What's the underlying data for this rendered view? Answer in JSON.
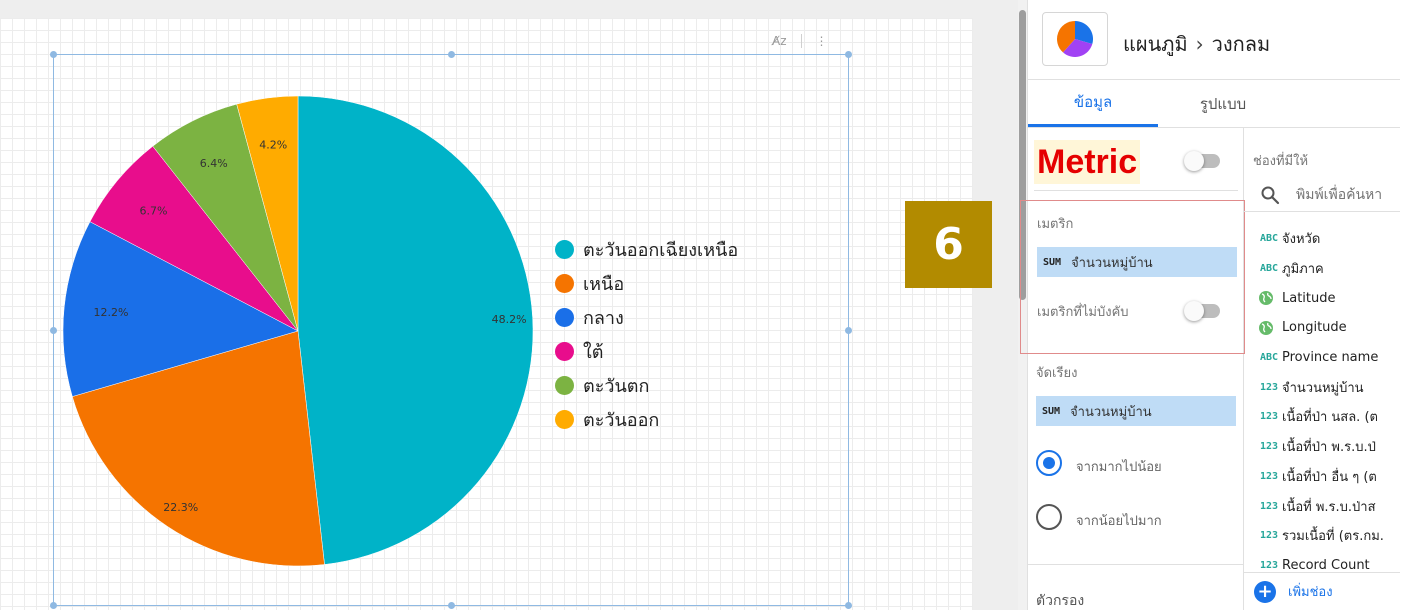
{
  "header": {
    "breadcrumb_parent": "แผนภูมิ",
    "breadcrumb_current": "วงกลม"
  },
  "tabs": [
    {
      "label": "ข้อมูล",
      "active": true
    },
    {
      "label": "รูปแบบ",
      "active": false
    }
  ],
  "step_badge": "6",
  "setup": {
    "metric_heading": "Metric",
    "metric_toggle_on": false,
    "metric_section_label": "เมตริก",
    "metric_chip": {
      "aggregation": "SUM",
      "field": "จำนวนหมู่บ้าน"
    },
    "optional_metrics_label": "เมตริกที่ไม่บังคับ",
    "optional_metrics_on": false,
    "sort_label": "จัดเรียง",
    "sort_chip": {
      "aggregation": "SUM",
      "field": "จำนวนหมู่บ้าน"
    },
    "sort_options": [
      {
        "label": "จากมากไปน้อย",
        "checked": true
      },
      {
        "label": "จากน้อยไปมาก",
        "checked": false
      }
    ],
    "filter_label": "ตัวกรอง"
  },
  "fields": {
    "available_label": "ช่องที่มีให้",
    "search_placeholder": "พิมพ์เพื่อค้นหา",
    "items": [
      {
        "type": "ABC",
        "name": "จังหวัด"
      },
      {
        "type": "ABC",
        "name": "ภูมิภาค"
      },
      {
        "type": "GEO",
        "name": "Latitude"
      },
      {
        "type": "GEO",
        "name": "Longitude"
      },
      {
        "type": "ABC",
        "name": "Province name"
      },
      {
        "type": "123",
        "name": "จำนวนหมู่บ้าน"
      },
      {
        "type": "123",
        "name": "เนื้อที่ป่า นสล. (ต"
      },
      {
        "type": "123",
        "name": "เนื้อที่ป่า พ.ร.บ.ป่"
      },
      {
        "type": "123",
        "name": "เนื้อที่ป่า อื่น ๆ (ต"
      },
      {
        "type": "123",
        "name": "เนื้อที่ พ.ร.บ.ป่าส"
      },
      {
        "type": "123",
        "name": "รวมเนื้อที่ (ตร.กม."
      },
      {
        "type": "123",
        "name": "Record Count"
      }
    ],
    "add_field_label": "เพิ่มช่อง"
  },
  "colors": {
    "accent": "#1a73e8",
    "metric_heading": "#e50000",
    "step_badge": "#b28b00"
  },
  "chart_data": {
    "type": "pie",
    "categories": [
      "ตะวันออกเฉียงเหนือ",
      "เหนือ",
      "กลาง",
      "ใต้",
      "ตะวันตก",
      "ตะวันออก"
    ],
    "values": [
      48.2,
      22.3,
      12.2,
      6.7,
      6.4,
      4.2
    ],
    "value_labels": [
      "48.2%",
      "22.3%",
      "12.2%",
      "6.7%",
      "6.4%",
      "4.2%"
    ],
    "colors": [
      "#00b3c8",
      "#f57400",
      "#1a6fe8",
      "#e80d8c",
      "#7cb342",
      "#ffab00"
    ],
    "legend_position": "right"
  }
}
